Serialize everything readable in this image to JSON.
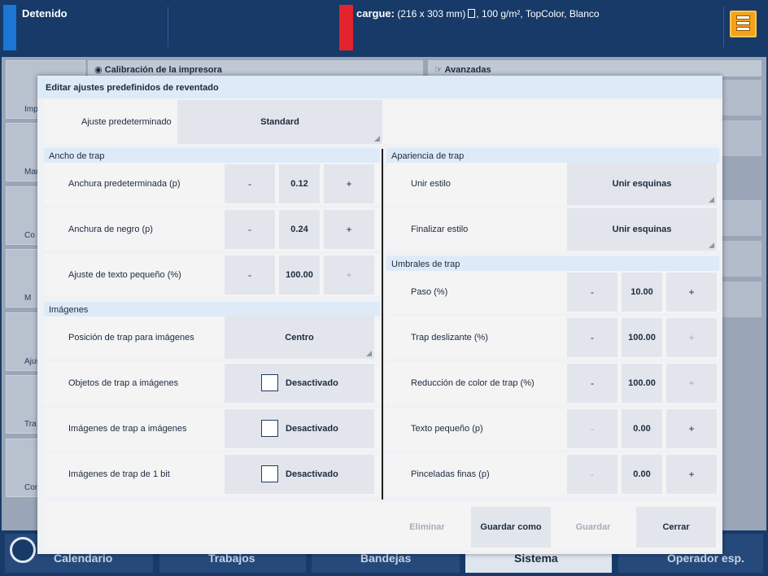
{
  "topbar": {
    "status": "Detenido",
    "load_label": "cargue:",
    "load_size": "(216 x 303 mm)",
    "load_details": ", 100 g/m², TopColor, Blanco",
    "colors": {
      "status_blue": "#1b76d6",
      "load_red": "#e5232d",
      "queue_orange": "#f3a21a"
    }
  },
  "background": {
    "panel_left_title": "Calibración de la impresora",
    "panel_right_title": "Avanzadas",
    "side_items": [
      "Imp",
      "Mant",
      "Co",
      "M",
      "Ajust",
      "Tra",
      "Con"
    ]
  },
  "bottom_nav": {
    "tabs": [
      "Calendario",
      "Trabajos",
      "Bandejas",
      "Sistema",
      "Operador esp."
    ],
    "active": "Sistema"
  },
  "dialog": {
    "title": "Editar ajustes predefinidos de reventado",
    "preset": {
      "label": "Ajuste predeterminado",
      "value": "Standard"
    },
    "left": {
      "trap_width": {
        "heading": "Ancho de trap",
        "rows": [
          {
            "label": "Anchura predeterminada (p)",
            "minus": "-",
            "value": "0.12",
            "plus": "+"
          },
          {
            "label": "Anchura de negro (p)",
            "minus": "-",
            "value": "0.24",
            "plus": "+"
          },
          {
            "label": "Ajuste de texto pequeño (%)",
            "minus": "-",
            "value": "100.00",
            "plus": "+"
          }
        ]
      },
      "images": {
        "heading": "Imágenes",
        "position": {
          "label": "Posición de trap para imágenes",
          "value": "Centro"
        },
        "toggles": [
          {
            "label": "Objetos de trap a imágenes",
            "value": "Desactivado"
          },
          {
            "label": "Imágenes de trap a imágenes",
            "value": "Desactivado"
          },
          {
            "label": "Imágenes de trap de 1 bit",
            "value": "Desactivado"
          }
        ]
      }
    },
    "right": {
      "appearance": {
        "heading": "Apariencia de trap",
        "rows": [
          {
            "label": "Unir estilo",
            "value": "Unir esquinas"
          },
          {
            "label": "Finalizar estilo",
            "value": "Unir esquinas"
          }
        ]
      },
      "thresholds": {
        "heading": "Umbrales de trap",
        "rows": [
          {
            "label": "Paso (%)",
            "minus": "-",
            "value": "10.00",
            "plus": "+"
          },
          {
            "label": "Trap deslizante (%)",
            "minus": "-",
            "value": "100.00",
            "plus": "+"
          },
          {
            "label": "Reducción de color de trap (%)",
            "minus": "-",
            "value": "100.00",
            "plus": "+"
          },
          {
            "label": "Texto pequeño (p)",
            "minus": "-",
            "value": "0.00",
            "plus": "+"
          },
          {
            "label": "Pinceladas finas (p)",
            "minus": "-",
            "value": "0.00",
            "plus": "+"
          }
        ]
      }
    },
    "footer": {
      "delete": "Eliminar",
      "save_as": "Guardar como",
      "save": "Guardar",
      "close": "Cerrar"
    }
  }
}
